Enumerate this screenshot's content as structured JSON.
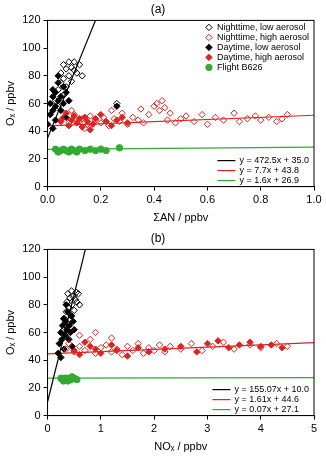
{
  "chart_data": [
    {
      "type": "scatter",
      "title": "(a)",
      "x_label": "ΣAN / ppbv",
      "y_label": "Oₓ / ppbv",
      "xlim": [
        0,
        1
      ],
      "ylim": [
        0,
        120
      ],
      "xticks": [
        {
          "value": 0,
          "label": "0.0"
        },
        {
          "value": 0.2,
          "label": "0.2"
        },
        {
          "value": 0.4,
          "label": "0.4"
        },
        {
          "value": 0.6,
          "label": "0.6"
        },
        {
          "value": 0.8,
          "label": "0.8"
        },
        {
          "value": 1,
          "label": "1.0"
        }
      ],
      "yticks": [
        0,
        20,
        40,
        60,
        80,
        100,
        120
      ],
      "grid": false,
      "legend": "right",
      "series": [
        {
          "name": "Nighttime, low aerosol",
          "color": "#000000",
          "marker": "diamond_open",
          "values": [
            [
              0.03,
              62
            ],
            [
              0.04,
              70
            ],
            [
              0.05,
              75
            ],
            [
              0.05,
              82
            ],
            [
              0.06,
              88
            ],
            [
              0.06,
              78
            ],
            [
              0.07,
              85
            ],
            [
              0.07,
              72
            ],
            [
              0.08,
              90
            ],
            [
              0.08,
              80
            ],
            [
              0.09,
              86
            ],
            [
              0.09,
              76
            ],
            [
              0.1,
              84
            ],
            [
              0.1,
              90
            ],
            [
              0.11,
              82
            ],
            [
              0.12,
              88
            ],
            [
              0.06,
              66
            ],
            [
              0.04,
              58
            ],
            [
              0.13,
              80
            ],
            [
              0.26,
              60
            ]
          ]
        },
        {
          "name": "Nighttime, high aerosol",
          "color": "#dd2222",
          "marker": "diamond_open",
          "values": [
            [
              0.05,
              48
            ],
            [
              0.07,
              50
            ],
            [
              0.08,
              46
            ],
            [
              0.1,
              52
            ],
            [
              0.12,
              47
            ],
            [
              0.13,
              49
            ],
            [
              0.15,
              45
            ],
            [
              0.16,
              51
            ],
            [
              0.18,
              48
            ],
            [
              0.2,
              46
            ],
            [
              0.21,
              50
            ],
            [
              0.23,
              44
            ],
            [
              0.25,
              49
            ],
            [
              0.27,
              47
            ],
            [
              0.28,
              53
            ],
            [
              0.3,
              45
            ],
            [
              0.32,
              50
            ],
            [
              0.34,
              48
            ],
            [
              0.36,
              46
            ],
            [
              0.38,
              52
            ],
            [
              0.4,
              58
            ],
            [
              0.41,
              60
            ],
            [
              0.42,
              55
            ],
            [
              0.43,
              62
            ],
            [
              0.44,
              57
            ],
            [
              0.45,
              48
            ],
            [
              0.46,
              53
            ],
            [
              0.48,
              46
            ],
            [
              0.5,
              49
            ],
            [
              0.52,
              51
            ],
            [
              0.55,
              47
            ],
            [
              0.58,
              52
            ],
            [
              0.6,
              45
            ],
            [
              0.63,
              50
            ],
            [
              0.66,
              48
            ],
            [
              0.7,
              53
            ],
            [
              0.72,
              47
            ],
            [
              0.75,
              49
            ],
            [
              0.78,
              51
            ],
            [
              0.8,
              48
            ],
            [
              0.83,
              50
            ],
            [
              0.86,
              47
            ],
            [
              0.88,
              49
            ],
            [
              0.9,
              52
            ],
            [
              0.35,
              56
            ],
            [
              0.24,
              55
            ],
            [
              0.14,
              42
            ],
            [
              0.09,
              55
            ]
          ]
        },
        {
          "name": "Daytime, low aerosol",
          "color": "#000000",
          "marker": "diamond",
          "values": [
            [
              0.0,
              45
            ],
            [
              0.01,
              52
            ],
            [
              0.01,
              60
            ],
            [
              0.02,
              55
            ],
            [
              0.02,
              65
            ],
            [
              0.02,
              70
            ],
            [
              0.03,
              48
            ],
            [
              0.03,
              58
            ],
            [
              0.03,
              68
            ],
            [
              0.04,
              62
            ],
            [
              0.04,
              75
            ],
            [
              0.05,
              55
            ],
            [
              0.05,
              65
            ],
            [
              0.06,
              60
            ],
            [
              0.06,
              72
            ],
            [
              0.07,
              50
            ],
            [
              0.07,
              68
            ],
            [
              0.08,
              62
            ],
            [
              0.02,
              42
            ],
            [
              0.04,
              80
            ],
            [
              0.26,
              58
            ]
          ]
        },
        {
          "name": "Daytime, high aerosol",
          "color": "#dd2222",
          "marker": "diamond",
          "values": [
            [
              0.05,
              47
            ],
            [
              0.06,
              50
            ],
            [
              0.08,
              44
            ],
            [
              0.09,
              48
            ],
            [
              0.1,
              51
            ],
            [
              0.11,
              46
            ],
            [
              0.12,
              49
            ],
            [
              0.13,
              43
            ],
            [
              0.14,
              50
            ],
            [
              0.15,
              47
            ],
            [
              0.17,
              45
            ],
            [
              0.18,
              49
            ],
            [
              0.2,
              52
            ],
            [
              0.22,
              47
            ],
            [
              0.24,
              44
            ],
            [
              0.26,
              48
            ],
            [
              0.28,
              50
            ],
            [
              0.3,
              46
            ],
            [
              0.07,
              53
            ],
            [
              0.16,
              41
            ]
          ]
        },
        {
          "name": "Flight B626",
          "color": "#33aa33",
          "marker": "circle",
          "values": [
            [
              0.03,
              27
            ],
            [
              0.04,
              25
            ],
            [
              0.05,
              26
            ],
            [
              0.06,
              27
            ],
            [
              0.07,
              26
            ],
            [
              0.08,
              25
            ],
            [
              0.09,
              27
            ],
            [
              0.1,
              26
            ],
            [
              0.11,
              25
            ],
            [
              0.12,
              27
            ],
            [
              0.14,
              26
            ],
            [
              0.16,
              27
            ],
            [
              0.18,
              26
            ],
            [
              0.2,
              27
            ],
            [
              0.22,
              26
            ],
            [
              0.27,
              28
            ]
          ]
        },
        {
          "name": "y = 472.5x + 35.0",
          "color": "#000000",
          "type": "line",
          "values": [
            [
              0,
              35.0
            ],
            [
              0.2,
              129.5
            ]
          ]
        },
        {
          "name": "y = 7.7x + 43.8",
          "color": "#dd2222",
          "type": "line",
          "values": [
            [
              0,
              43.8
            ],
            [
              1,
              51.5
            ]
          ]
        },
        {
          "name": "y = 1.6x + 26.9",
          "color": "#33aa33",
          "type": "line",
          "values": [
            [
              0,
              26.9
            ],
            [
              1,
              28.5
            ]
          ]
        }
      ]
    },
    {
      "type": "scatter",
      "title": "(b)",
      "x_label": "NOₓ / ppbv",
      "y_label": "Oₓ / ppbv",
      "xlim": [
        0,
        5
      ],
      "ylim": [
        0,
        120
      ],
      "xticks": [
        0,
        1,
        2,
        3,
        4,
        5
      ],
      "yticks": [
        0,
        20,
        40,
        60,
        80,
        100,
        120
      ],
      "grid": false,
      "legend": "right",
      "series": [
        {
          "color": "#000000",
          "marker": "diamond_open",
          "values": [
            [
              0.3,
              62
            ],
            [
              0.32,
              70
            ],
            [
              0.35,
              75
            ],
            [
              0.36,
              82
            ],
            [
              0.38,
              88
            ],
            [
              0.4,
              78
            ],
            [
              0.42,
              85
            ],
            [
              0.44,
              72
            ],
            [
              0.45,
              90
            ],
            [
              0.46,
              80
            ],
            [
              0.48,
              86
            ],
            [
              0.5,
              76
            ],
            [
              0.52,
              84
            ],
            [
              0.54,
              89
            ],
            [
              0.55,
              82
            ],
            [
              0.58,
              88
            ],
            [
              0.4,
              66
            ],
            [
              0.33,
              58
            ],
            [
              0.6,
              80
            ]
          ]
        },
        {
          "color": "#dd2222",
          "marker": "diamond_open",
          "values": [
            [
              0.35,
              48
            ],
            [
              0.4,
              52
            ],
            [
              0.5,
              46
            ],
            [
              0.6,
              50
            ],
            [
              0.7,
              47
            ],
            [
              0.8,
              55
            ],
            [
              0.9,
              45
            ],
            [
              1.0,
              49
            ],
            [
              1.1,
              51
            ],
            [
              1.2,
              46
            ],
            [
              1.3,
              48
            ],
            [
              1.4,
              44
            ],
            [
              1.5,
              50
            ],
            [
              1.6,
              47
            ],
            [
              1.7,
              52
            ],
            [
              1.8,
              45
            ],
            [
              1.9,
              49
            ],
            [
              2.0,
              47
            ],
            [
              2.1,
              51
            ],
            [
              2.2,
              46
            ],
            [
              2.3,
              50
            ],
            [
              2.5,
              48
            ],
            [
              2.7,
              52
            ],
            [
              2.9,
              47
            ],
            [
              3.1,
              50
            ],
            [
              3.3,
              53
            ],
            [
              3.5,
              48
            ],
            [
              3.8,
              51
            ],
            [
              4.0,
              49
            ],
            [
              4.3,
              52
            ],
            [
              4.5,
              50
            ],
            [
              0.6,
              58
            ],
            [
              0.9,
              60
            ],
            [
              1.2,
              56
            ]
          ]
        },
        {
          "color": "#000000",
          "marker": "diamond",
          "values": [
            [
              0.2,
              45
            ],
            [
              0.22,
              52
            ],
            [
              0.25,
              60
            ],
            [
              0.27,
              55
            ],
            [
              0.28,
              65
            ],
            [
              0.3,
              70
            ],
            [
              0.31,
              48
            ],
            [
              0.33,
              58
            ],
            [
              0.34,
              68
            ],
            [
              0.36,
              62
            ],
            [
              0.38,
              75
            ],
            [
              0.4,
              55
            ],
            [
              0.41,
              65
            ],
            [
              0.43,
              60
            ],
            [
              0.45,
              72
            ],
            [
              0.46,
              50
            ],
            [
              0.48,
              68
            ],
            [
              0.5,
              62
            ],
            [
              0.25,
              42
            ],
            [
              0.35,
              80
            ]
          ]
        },
        {
          "color": "#dd2222",
          "marker": "diamond",
          "values": [
            [
              0.5,
              47
            ],
            [
              0.6,
              44
            ],
            [
              0.8,
              50
            ],
            [
              0.9,
              48
            ],
            [
              1.0,
              45
            ],
            [
              1.2,
              51
            ],
            [
              1.3,
              47
            ],
            [
              1.5,
              43
            ],
            [
              1.7,
              49
            ],
            [
              1.9,
              46
            ],
            [
              2.2,
              48
            ],
            [
              2.5,
              50
            ],
            [
              2.8,
              46
            ],
            [
              3.0,
              52
            ],
            [
              3.2,
              54
            ],
            [
              3.4,
              49
            ],
            [
              3.6,
              51
            ],
            [
              3.8,
              53
            ],
            [
              4.0,
              50
            ],
            [
              4.2,
              51
            ],
            [
              4.4,
              49
            ],
            [
              0.7,
              53
            ]
          ]
        },
        {
          "color": "#33aa33",
          "marker": "circle",
          "values": [
            [
              0.25,
              27
            ],
            [
              0.28,
              26
            ],
            [
              0.3,
              25
            ],
            [
              0.32,
              27
            ],
            [
              0.34,
              26
            ],
            [
              0.36,
              27
            ],
            [
              0.38,
              25
            ],
            [
              0.4,
              26
            ],
            [
              0.42,
              27
            ],
            [
              0.44,
              26
            ],
            [
              0.46,
              28
            ],
            [
              0.5,
              27
            ],
            [
              0.55,
              26
            ]
          ]
        },
        {
          "name": "y = 155.07x + 10.0",
          "color": "#000000",
          "type": "line",
          "values": [
            [
              0,
              10.0
            ],
            [
              1,
              165.07
            ]
          ]
        },
        {
          "name": "y = 1.61x + 44.6",
          "color": "#dd2222",
          "type": "line",
          "values": [
            [
              0,
              44.6
            ],
            [
              5,
              52.65
            ]
          ]
        },
        {
          "name": "y = 0.07x + 27.1",
          "color": "#33aa33",
          "type": "line",
          "values": [
            [
              0,
              27.1
            ],
            [
              5,
              27.45
            ]
          ]
        }
      ]
    }
  ]
}
